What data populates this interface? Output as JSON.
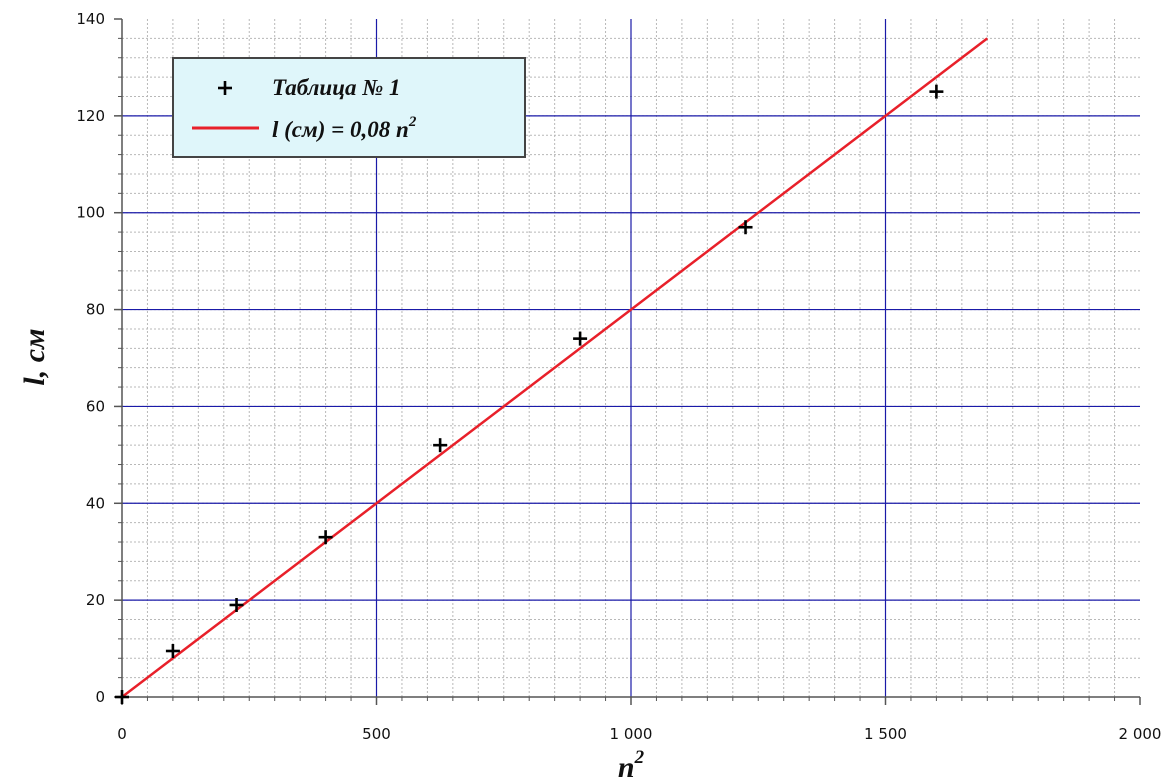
{
  "chart_data": {
    "type": "scatter",
    "xlabel": "n",
    "xlabel_superscript": "2",
    "ylabel": "l, см",
    "xlim": [
      0,
      2000
    ],
    "ylim": [
      0,
      140
    ],
    "x_ticks": [
      0,
      500,
      1000,
      1500,
      2000
    ],
    "x_tick_labels": [
      "0",
      "500",
      "1 000",
      "1 500",
      "2 000"
    ],
    "y_ticks": [
      0,
      20,
      40,
      60,
      80,
      100,
      120,
      140
    ],
    "y_tick_labels": [
      "0",
      "20",
      "40",
      "60",
      "80",
      "100",
      "120",
      "140"
    ],
    "grid": true,
    "legend_position": "top-left",
    "series": [
      {
        "name": "Таблица № 1",
        "kind": "scatter",
        "marker": "+",
        "color": "#000000",
        "x": [
          0,
          100,
          225,
          400,
          625,
          900,
          1225,
          1600
        ],
        "y": [
          0,
          9.5,
          19,
          33,
          52,
          74,
          97,
          125
        ]
      },
      {
        "name": "l (см) = 0,08 n",
        "name_superscript": "2",
        "kind": "line",
        "color": "#e8202a",
        "x": [
          0,
          1700
        ],
        "y": [
          0,
          136
        ]
      }
    ]
  },
  "colors": {
    "major_grid": "#1a1aa8",
    "minor_grid": "#b8b8b8",
    "axis": "#555555",
    "legend_bg": "#dff6fa",
    "legend_border": "#444444"
  }
}
